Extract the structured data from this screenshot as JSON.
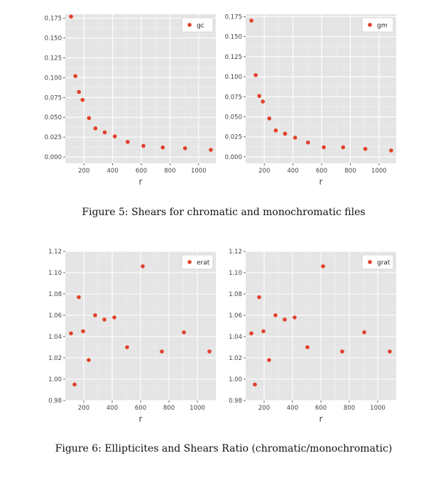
{
  "captions": [
    "Figure 5: Shears for chromatic and monochromatic files",
    "Figure 6: Ellipticites and Shears Ratio (chromatic/monochromatic)"
  ],
  "chart_data": [
    {
      "type": "scatter",
      "xlabel": "r",
      "ylabel": "",
      "xlim": [
        70,
        1120
      ],
      "ylim": [
        -0.008,
        0.18
      ],
      "xticks": [
        200,
        400,
        600,
        800,
        1000
      ],
      "yticks": [
        0.0,
        0.025,
        0.05,
        0.075,
        0.1,
        0.125,
        0.15,
        0.175
      ],
      "ytick_labels": [
        "0.000",
        "0.025",
        "0.050",
        "0.075",
        "0.100",
        "0.125",
        "0.150",
        "0.175"
      ],
      "grid": true,
      "legend_position": "top-right",
      "series": [
        {
          "name": "gc",
          "color": "#e0402a",
          "x": [
            110,
            140,
            165,
            190,
            235,
            280,
            345,
            415,
            505,
            615,
            750,
            905,
            1085
          ],
          "y": [
            0.177,
            0.102,
            0.082,
            0.072,
            0.049,
            0.036,
            0.031,
            0.026,
            0.019,
            0.014,
            0.012,
            0.011,
            0.009
          ]
        }
      ]
    },
    {
      "type": "scatter",
      "xlabel": "r",
      "ylabel": "",
      "xlim": [
        70,
        1120
      ],
      "ylim": [
        -0.008,
        0.178
      ],
      "xticks": [
        200,
        400,
        600,
        800,
        1000
      ],
      "yticks": [
        0.0,
        0.025,
        0.05,
        0.075,
        0.1,
        0.125,
        0.15,
        0.175
      ],
      "ytick_labels": [
        "0.000",
        "0.025",
        "0.050",
        "0.075",
        "0.100",
        "0.125",
        "0.150",
        "0.175"
      ],
      "grid": true,
      "legend_position": "top-right",
      "series": [
        {
          "name": "gm",
          "color": "#e0402a",
          "x": [
            110,
            140,
            165,
            190,
            235,
            280,
            345,
            415,
            505,
            615,
            750,
            905,
            1085
          ],
          "y": [
            0.17,
            0.102,
            0.076,
            0.069,
            0.048,
            0.033,
            0.029,
            0.024,
            0.018,
            0.012,
            0.012,
            0.01,
            0.008
          ]
        }
      ]
    },
    {
      "type": "scatter",
      "xlabel": "r",
      "ylabel": "",
      "xlim": [
        70,
        1130
      ],
      "ylim": [
        0.98,
        1.12
      ],
      "xticks": [
        200,
        400,
        600,
        800,
        1000
      ],
      "yticks": [
        0.98,
        1.0,
        1.02,
        1.04,
        1.06,
        1.08,
        1.1,
        1.12
      ],
      "ytick_labels": [
        "0.98",
        "1.00",
        "1.02",
        "1.04",
        "1.06",
        "1.08",
        "1.10",
        "1.12"
      ],
      "grid": true,
      "legend_position": "top-right",
      "series": [
        {
          "name": "erat",
          "color": "#e0402a",
          "x": [
            110,
            135,
            165,
            195,
            235,
            280,
            345,
            415,
            505,
            615,
            750,
            905,
            1085
          ],
          "y": [
            1.043,
            0.995,
            1.077,
            1.045,
            1.018,
            1.06,
            1.056,
            1.058,
            1.03,
            1.106,
            1.026,
            1.044,
            1.026
          ]
        }
      ]
    },
    {
      "type": "scatter",
      "xlabel": "r",
      "ylabel": "",
      "xlim": [
        70,
        1130
      ],
      "ylim": [
        0.98,
        1.12
      ],
      "xticks": [
        200,
        400,
        600,
        800,
        1000
      ],
      "yticks": [
        0.98,
        1.0,
        1.02,
        1.04,
        1.06,
        1.08,
        1.1,
        1.12
      ],
      "ytick_labels": [
        "0.98",
        "1.00",
        "1.02",
        "1.04",
        "1.06",
        "1.08",
        "1.10",
        "1.12"
      ],
      "grid": true,
      "legend_position": "top-right",
      "series": [
        {
          "name": "grat",
          "color": "#e0402a",
          "x": [
            110,
            135,
            165,
            195,
            235,
            280,
            345,
            415,
            505,
            615,
            750,
            905,
            1085
          ],
          "y": [
            1.043,
            0.995,
            1.077,
            1.045,
            1.018,
            1.06,
            1.056,
            1.058,
            1.03,
            1.106,
            1.026,
            1.044,
            1.026
          ]
        }
      ]
    }
  ]
}
